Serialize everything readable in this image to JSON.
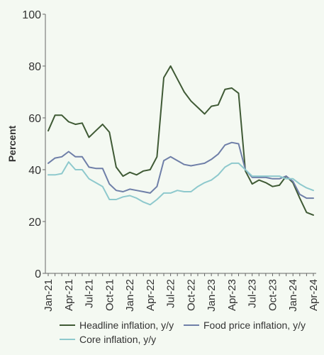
{
  "chart_data": {
    "type": "line",
    "xlabel": "",
    "ylabel": "Percent",
    "ylim": [
      0,
      100
    ],
    "yticks": [
      "0",
      "20",
      "40",
      "60",
      "80",
      "100"
    ],
    "x": [
      "Jan-21",
      "Feb-21",
      "Mar-21",
      "Apr-21",
      "May-21",
      "Jun-21",
      "Jul-21",
      "Aug-21",
      "Sep-21",
      "Oct-21",
      "Nov-21",
      "Dec-21",
      "Jan-22",
      "Feb-22",
      "Mar-22",
      "Apr-22",
      "May-22",
      "Jun-22",
      "Jul-22",
      "Aug-22",
      "Sep-22",
      "Oct-22",
      "Nov-22",
      "Dec-22",
      "Jan-23",
      "Feb-23",
      "Mar-23",
      "Apr-23",
      "May-23",
      "Jun-23",
      "Jul-23",
      "Aug-23",
      "Sep-23",
      "Oct-23",
      "Nov-23",
      "Dec-23",
      "Jan-24",
      "Feb-24",
      "Mar-24",
      "Apr-24"
    ],
    "xtick_labels": [
      "Jan-21",
      "Apr-21",
      "Jul-21",
      "Oct-21",
      "Jan-22",
      "Apr-22",
      "Jul-22",
      "Oct-22",
      "Jan-23",
      "Apr-23",
      "Jul-23",
      "Oct-23",
      "Jan-24",
      "Apr-24"
    ],
    "grid": false,
    "legend_position": "bottom",
    "series": [
      {
        "name": "Headline inflation, y/y",
        "color": "#3f5a35",
        "values": [
          55,
          61,
          61,
          58.5,
          57.5,
          58,
          52.5,
          55,
          57.5,
          54.5,
          41,
          37.5,
          39,
          38,
          39.5,
          40,
          45,
          75.5,
          80,
          75,
          70,
          66.5,
          64,
          61.5,
          64.5,
          65,
          71,
          71.5,
          69.5,
          39.5,
          34.5,
          36,
          35,
          33.5,
          34,
          37.5,
          35,
          29,
          23.5,
          22.5
        ]
      },
      {
        "name": "Food price inflation, y/y",
        "color": "#6f7fa8",
        "values": [
          42.5,
          44.5,
          45,
          47,
          45,
          45,
          41,
          40.5,
          40.5,
          34.5,
          32,
          31.5,
          32.5,
          32,
          31.5,
          31,
          33.5,
          43.5,
          45,
          43.5,
          42,
          41.5,
          42,
          42.5,
          44,
          46,
          49.5,
          50.5,
          50,
          40,
          37,
          37,
          37,
          36.5,
          36.5,
          37.5,
          35.5,
          30.5,
          29,
          29
        ]
      },
      {
        "name": "Core inflation, y/y",
        "color": "#8ec9cd",
        "values": [
          38,
          38,
          38.5,
          43,
          40,
          40,
          36.5,
          35,
          33.5,
          28.5,
          28.5,
          29.5,
          30,
          29,
          27.5,
          26.5,
          28.5,
          31,
          31,
          32,
          31.5,
          31.5,
          33.5,
          35,
          36,
          38,
          41,
          42.5,
          42.5,
          40,
          37.5,
          37.5,
          37.5,
          37.5,
          37.5,
          36.5,
          36.5,
          34.5,
          33,
          32
        ]
      }
    ]
  }
}
